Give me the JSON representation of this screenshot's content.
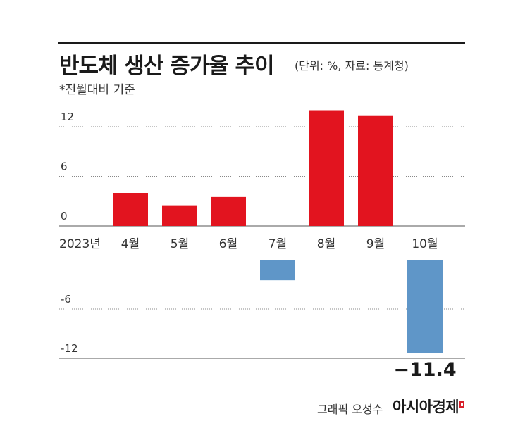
{
  "header": {
    "title": "반도체 생산 증가율 추이",
    "unit": "(단위: %, 자료: 통계청)",
    "basis": "*전월대비 기준"
  },
  "chart_data": {
    "type": "bar",
    "year_label": "2023년",
    "categories": [
      "4월",
      "5월",
      "6월",
      "7월",
      "8월",
      "9월",
      "10월"
    ],
    "values": [
      4.0,
      2.5,
      3.5,
      -2.5,
      14.0,
      13.3,
      -11.4
    ],
    "yticks": [
      "12",
      "6",
      "0",
      "-6",
      "-12"
    ],
    "ylim": [
      -12,
      14
    ],
    "annotation": "−11.4",
    "colors": {
      "positive": "#e2141f",
      "negative": "#5f96c8"
    },
    "grid": true
  },
  "footer": {
    "credit": "그래픽 오성수",
    "brand": "아시아경제"
  }
}
